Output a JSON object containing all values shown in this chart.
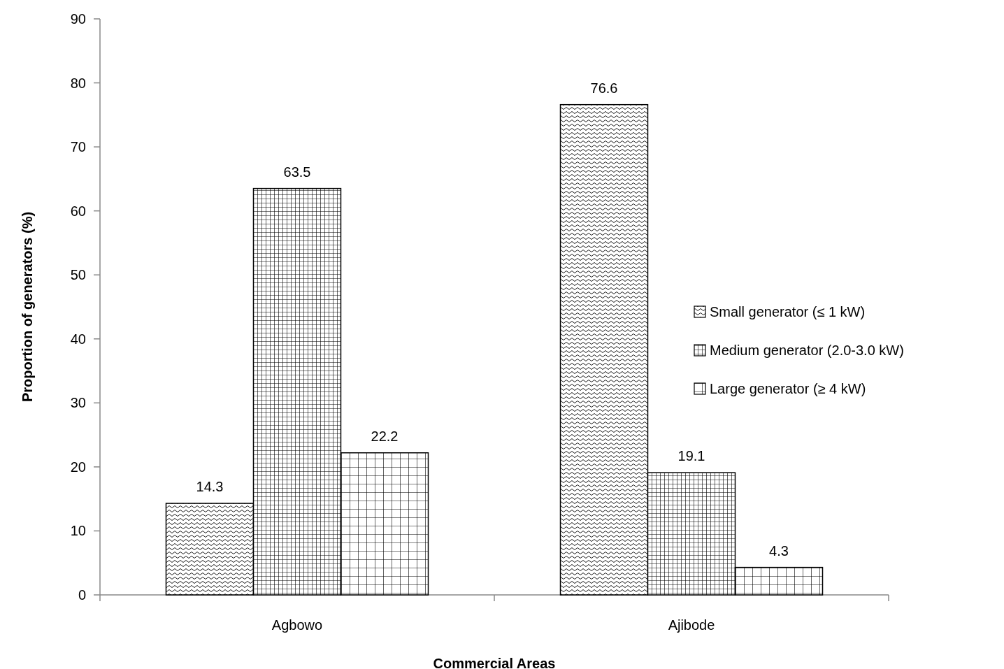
{
  "chart_data": {
    "type": "bar",
    "xlabel": "Commercial Areas",
    "ylabel": "Proportion of generators (%)",
    "categories": [
      "Agbowo",
      "Ajibode"
    ],
    "series": [
      {
        "name": "Small generator (≤ 1 kW)",
        "color": "#000000",
        "values": [
          14.3,
          76.6
        ]
      },
      {
        "name": "Medium generator (2.0-3.0 kW)",
        "color": "#000000",
        "values": [
          63.5,
          19.1
        ]
      },
      {
        "name": "Large generator (≥ 4 kW)",
        "color": "#000000",
        "values": [
          22.2,
          4.3
        ]
      }
    ],
    "ylim": [
      0,
      90
    ],
    "yticks": [
      0,
      10,
      20,
      30,
      40,
      50,
      60,
      70,
      80,
      90
    ],
    "data_labels": true,
    "legend": "right",
    "grid": false
  }
}
